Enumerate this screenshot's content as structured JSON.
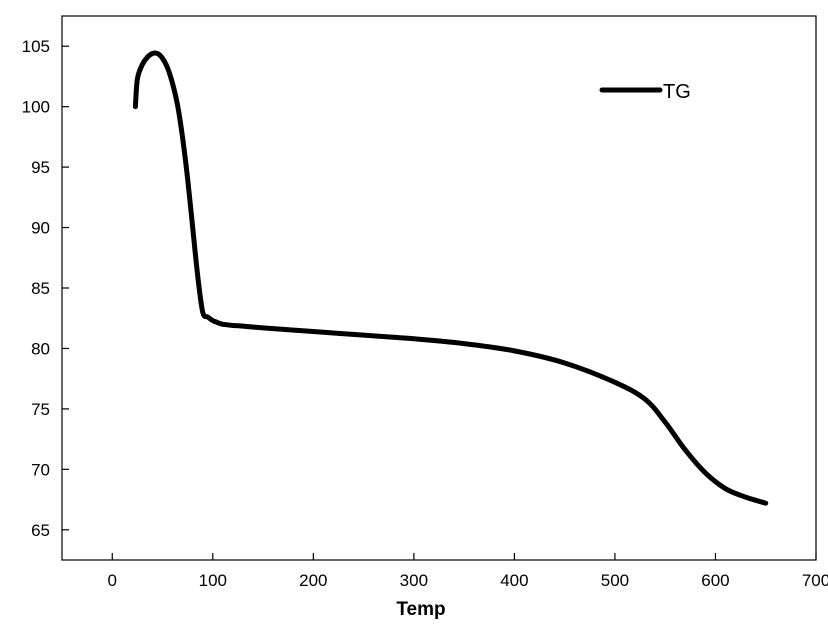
{
  "chart_data": {
    "type": "line",
    "title": "",
    "xlabel": "Temp",
    "ylabel": "",
    "xlim": [
      -50,
      700
    ],
    "ylim": [
      62.5,
      107.5
    ],
    "x_ticks": [
      0,
      100,
      200,
      300,
      400,
      500,
      600,
      700
    ],
    "y_ticks": [
      65,
      70,
      75,
      80,
      85,
      90,
      95,
      100,
      105
    ],
    "legend": {
      "placement": "top-right"
    },
    "series": [
      {
        "name": "TG",
        "color": "#000000",
        "x": [
          23,
          25,
          30,
          35,
          40,
          45,
          50,
          55,
          60,
          65,
          70,
          75,
          80,
          85,
          90,
          95,
          100,
          103,
          106,
          110,
          115,
          120,
          130,
          150,
          200,
          250,
          300,
          350,
          400,
          450,
          500,
          530,
          550,
          570,
          590,
          610,
          630,
          650
        ],
        "y": [
          100.0,
          102.3,
          103.5,
          104.1,
          104.4,
          104.4,
          104.0,
          103.2,
          101.9,
          100.1,
          97.4,
          94.0,
          90.0,
          86.0,
          83.0,
          82.6,
          82.3,
          82.2,
          82.1,
          82.0,
          81.95,
          81.9,
          81.85,
          81.7,
          81.4,
          81.1,
          80.8,
          80.4,
          79.8,
          78.8,
          77.2,
          75.8,
          73.9,
          71.6,
          69.7,
          68.4,
          67.7,
          67.2
        ]
      }
    ]
  }
}
